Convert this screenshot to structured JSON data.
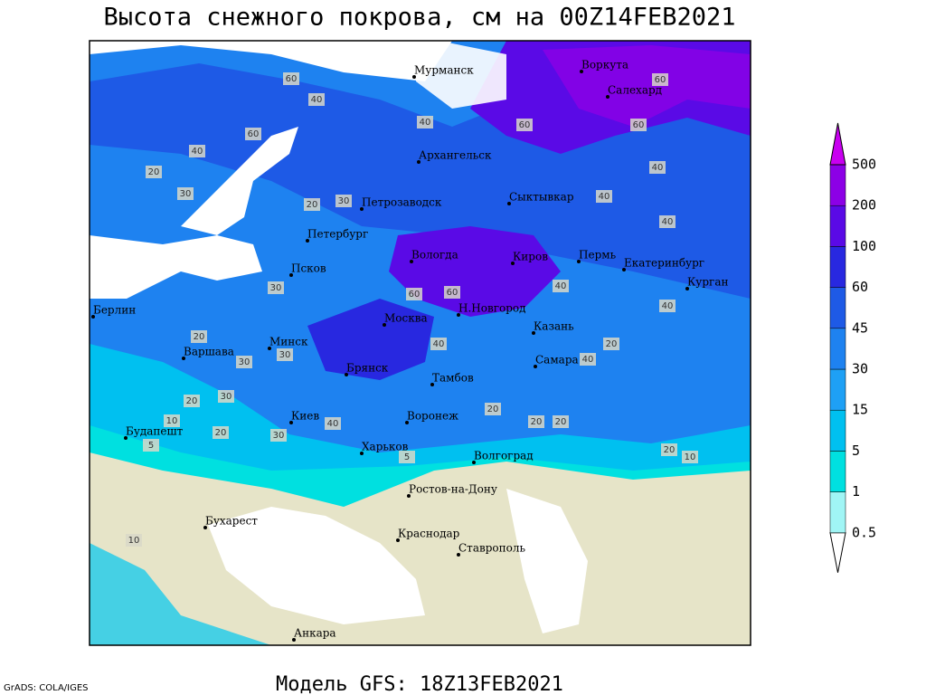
{
  "title": "Высота снежного покрова, см на 00Z14FEB2021",
  "subtitle": "Модель GFS: 18Z13FEB2021",
  "credit": "GrADS: COLA/IGES",
  "legend": {
    "levels": [
      0.5,
      1,
      5,
      15,
      30,
      45,
      60,
      100,
      200,
      500
    ],
    "colors": [
      "#ffffff",
      "#a0f5f5",
      "#00e0e0",
      "#00c0f0",
      "#1ea0f5",
      "#1e82f0",
      "#1e5ae6",
      "#2828e0",
      "#5a0ae6",
      "#8c00e6",
      "#c800f0"
    ]
  },
  "cities": [
    "Мурманск",
    "Воркута",
    "Салехард",
    "Архангельск",
    "Петрозаводск",
    "Сыктывкар",
    "Петербург",
    "Вологда",
    "Киров",
    "Пермь",
    "Екатеринбург",
    "Курган",
    "Псков",
    "Н.Новгород",
    "Москва",
    "Казань",
    "Берлин",
    "Минск",
    "Варшава",
    "Брянск",
    "Самара",
    "Тамбов",
    "Воронеж",
    "Киев",
    "Будапешт",
    "Харьков",
    "Волгоград",
    "Ростов-на-Дону",
    "Бухарест",
    "Краснодар",
    "Ставрополь",
    "Анкара"
  ],
  "contour_labels": [
    60,
    40,
    60,
    40,
    20,
    30,
    40,
    60,
    60,
    60,
    40,
    40,
    40,
    30,
    20,
    60,
    60,
    40,
    40,
    30,
    30,
    30,
    20,
    20,
    40,
    40,
    20,
    20,
    30,
    20,
    20,
    5,
    10,
    20,
    10,
    5,
    20,
    40,
    30,
    10
  ]
}
